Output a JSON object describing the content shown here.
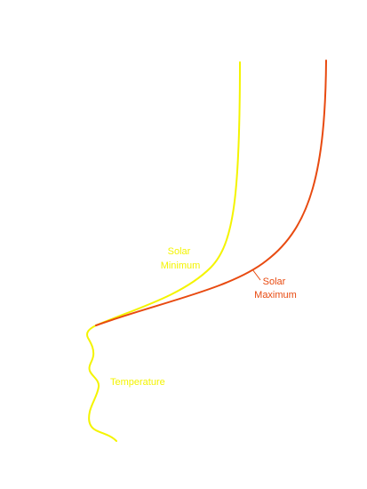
{
  "colors": {
    "solar_minimum": "#f4f400",
    "solar_maximum": "#e84a10",
    "temperature": "#f4f400",
    "background": "#ffffff"
  },
  "labels": {
    "solar_minimum": [
      "Solar",
      "Minimum"
    ],
    "solar_maximum": [
      "Solar",
      "Maximum"
    ],
    "temperature": "Temperature"
  }
}
